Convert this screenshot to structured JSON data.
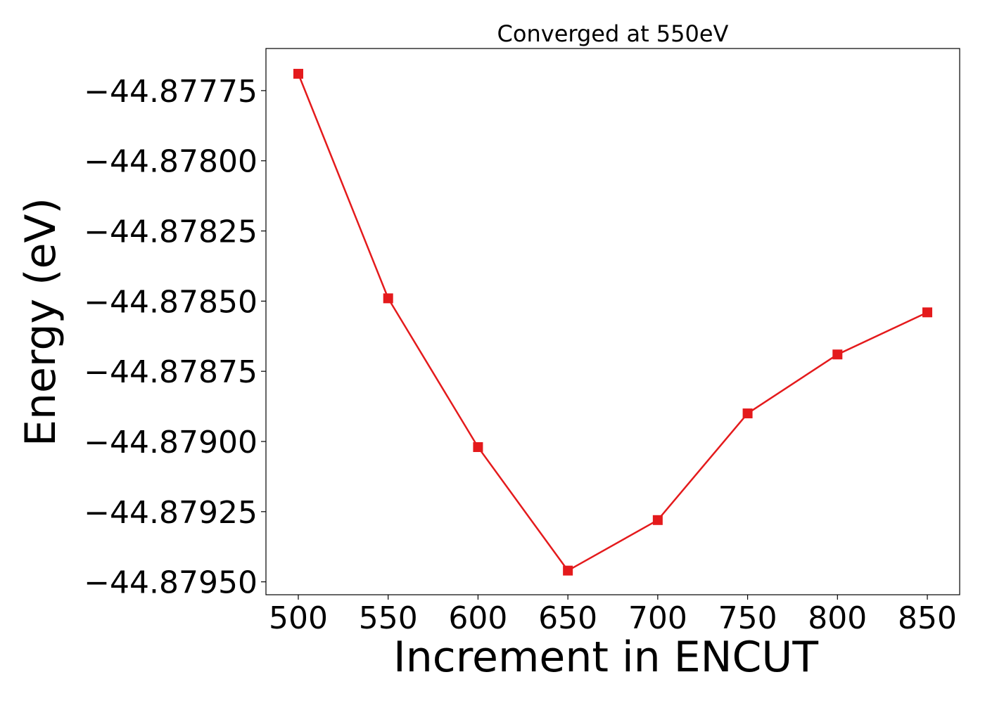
{
  "chart_data": {
    "type": "line",
    "title": "Converged at 550eV",
    "xlabel": "Increment in ENCUT",
    "ylabel": "Energy (eV)",
    "x": [
      500,
      550,
      600,
      650,
      700,
      750,
      800,
      850
    ],
    "series": [
      {
        "values": [
          -44.87769,
          -44.87849,
          -44.87902,
          -44.87946,
          -44.87928,
          -44.8789,
          -44.87869,
          -44.87854
        ],
        "color": "#e41a1c",
        "marker": "square"
      }
    ],
    "xticks": [
      500,
      550,
      600,
      650,
      700,
      750,
      800,
      850
    ],
    "xtick_labels": [
      "500",
      "550",
      "600",
      "650",
      "700",
      "750",
      "800",
      "850"
    ],
    "yticks": [
      -44.87775,
      -44.878,
      -44.87825,
      -44.8785,
      -44.87875,
      -44.879,
      -44.87925,
      -44.8795
    ],
    "ytick_labels": [
      "−44.87775",
      "−44.87800",
      "−44.87825",
      "−44.87850",
      "−44.87875",
      "−44.87900",
      "−44.87925",
      "−44.87950"
    ],
    "xlim": [
      482,
      868
    ],
    "ylim": [
      -44.879546,
      -44.8776
    ],
    "grid": false,
    "legend": false
  }
}
